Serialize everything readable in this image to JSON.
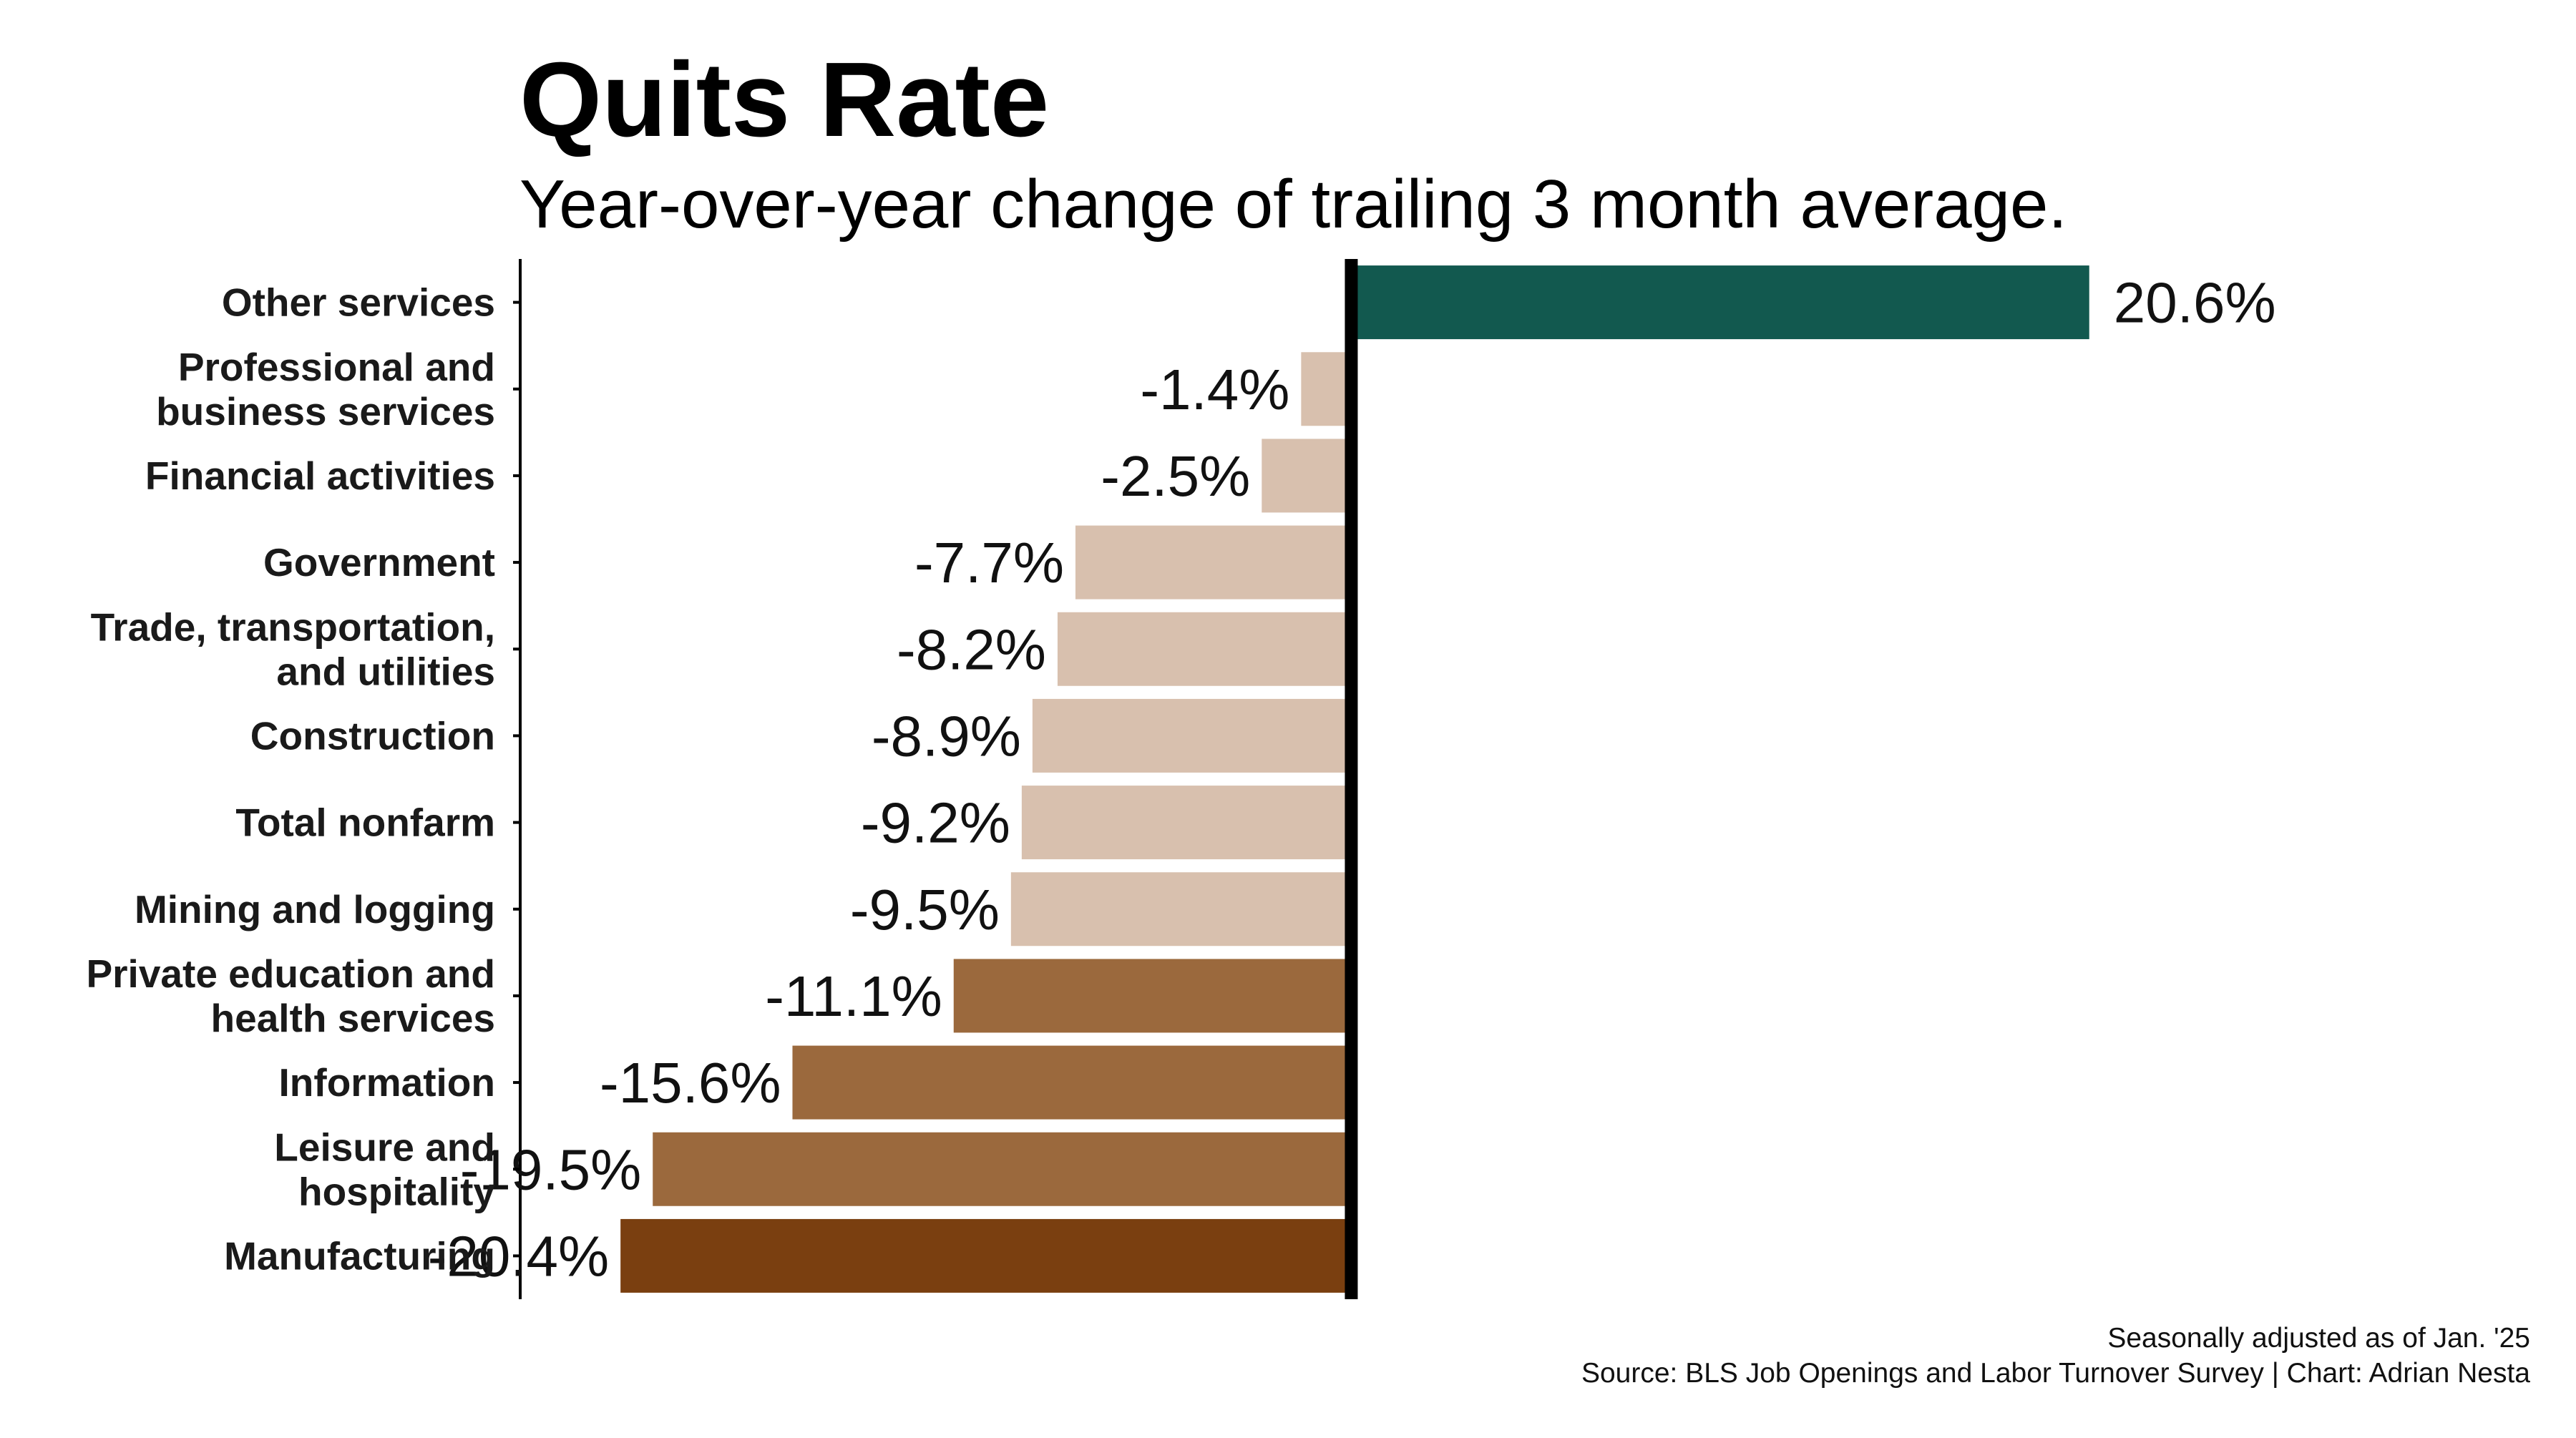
{
  "chart_data": {
    "type": "bar",
    "orientation": "horizontal",
    "title": "Quits Rate",
    "subtitle": "Year-over-year change of trailing 3 month average.",
    "value_format": "percent",
    "grid": false,
    "legend": "none",
    "xlim": [
      -23.2,
      24.8
    ],
    "bars": [
      {
        "category": [
          "Other services"
        ],
        "value": 20.6,
        "label": "20.6%",
        "color": "#12594f"
      },
      {
        "category": [
          "Professional and",
          "business services"
        ],
        "value": -1.4,
        "label": "-1.4%",
        "color": "#d8c0ae"
      },
      {
        "category": [
          "Financial activities"
        ],
        "value": -2.5,
        "label": "-2.5%",
        "color": "#d8c0ae"
      },
      {
        "category": [
          "Government"
        ],
        "value": -7.7,
        "label": "-7.7%",
        "color": "#d8c0ae"
      },
      {
        "category": [
          "Trade, transportation,",
          "and utilities"
        ],
        "value": -8.2,
        "label": "-8.2%",
        "color": "#d8c0ae"
      },
      {
        "category": [
          "Construction"
        ],
        "value": -8.9,
        "label": "-8.9%",
        "color": "#d8c0ae"
      },
      {
        "category": [
          "Total nonfarm"
        ],
        "value": -9.2,
        "label": "-9.2%",
        "color": "#d8c0ae"
      },
      {
        "category": [
          "Mining and logging"
        ],
        "value": -9.5,
        "label": "-9.5%",
        "color": "#d8c0ae"
      },
      {
        "category": [
          "Private education and",
          "health services"
        ],
        "value": -11.1,
        "label": "-11.1%",
        "color": "#9b693d"
      },
      {
        "category": [
          "Information"
        ],
        "value": -15.6,
        "label": "-15.6%",
        "color": "#9b693d"
      },
      {
        "category": [
          "Leisure and",
          "hospitality"
        ],
        "value": -19.5,
        "label": "-19.5%",
        "color": "#9b693d"
      },
      {
        "category": [
          "Manufacturing"
        ],
        "value": -20.4,
        "label": "-20.4%",
        "color": "#7a3f10"
      }
    ],
    "caption": [
      "Seasonally adjusted as of Jan. '25",
      "Source: BLS Job Openings and Labor Turnover Survey | Chart: Adrian Nesta"
    ]
  }
}
